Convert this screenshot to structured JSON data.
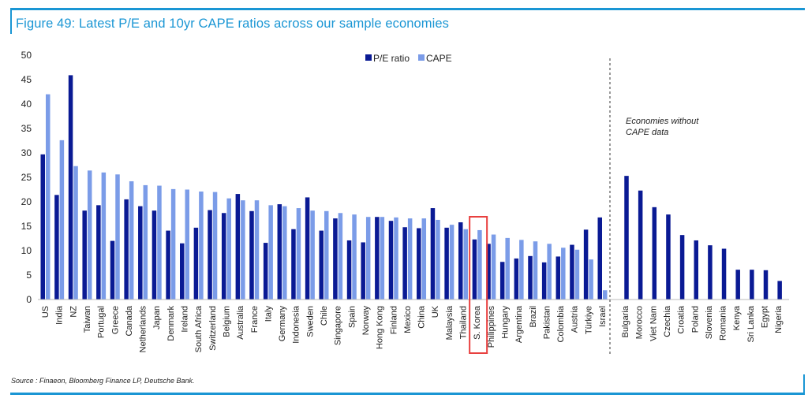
{
  "title": "Figure 49: Latest P/E and 10yr CAPE ratios across our sample economies",
  "source": "Source : Finaeon, Bloomberg Finance LP, Deutsche Bank.",
  "chart_data": {
    "type": "bar",
    "title": "Figure 49: Latest P/E and 10yr CAPE ratios across our sample economies",
    "xlabel": "",
    "ylabel": "",
    "ylim": [
      0,
      50
    ],
    "yticks": [
      0,
      5,
      10,
      15,
      20,
      25,
      30,
      35,
      40,
      45,
      50
    ],
    "grid": false,
    "legend_position": "top-center",
    "colors": {
      "pe": "#0a1a94",
      "cape": "#7b9ce8",
      "highlight": "#e8403f"
    },
    "highlighted_category": "S. Korea",
    "annotation": [
      "Economies without",
      "CAPE data"
    ],
    "categories": [
      "US",
      "India",
      "NZ",
      "Taiwan",
      "Portugal",
      "Greece",
      "Canada",
      "Netherlands",
      "Japan",
      "Denmark",
      "Ireland",
      "South Africa",
      "Switzerland",
      "Belgium",
      "Australia",
      "France",
      "Italy",
      "Germany",
      "Indonesia",
      "Sweden",
      "Chile",
      "Singapore",
      "Spain",
      "Norway",
      "Hong Kong",
      "Finland",
      "Mexico",
      "China",
      "UK",
      "Malaysia",
      "Thailand",
      "S. Korea",
      "Philippines",
      "Hungary",
      "Argentina",
      "Brazil",
      "Pakistan",
      "Colombia",
      "Austria",
      "Türkiye",
      "Israel"
    ],
    "series": [
      {
        "name": "P/E ratio",
        "values": [
          29.7,
          21.4,
          45.9,
          18.2,
          19.3,
          12.0,
          20.5,
          19.1,
          18.2,
          14.1,
          11.5,
          14.7,
          18.3,
          17.7,
          21.6,
          18.1,
          11.6,
          19.5,
          14.4,
          20.9,
          14.1,
          16.6,
          12.1,
          11.7,
          16.9,
          16.1,
          14.8,
          14.6,
          18.7,
          14.7,
          15.8,
          12.3,
          11.4,
          7.7,
          8.4,
          8.9,
          7.6,
          8.8,
          11.2,
          14.3,
          16.8
        ]
      },
      {
        "name": "CAPE",
        "values": [
          42.0,
          32.6,
          27.3,
          26.4,
          26.0,
          25.6,
          24.2,
          23.4,
          23.3,
          22.6,
          22.5,
          22.1,
          22.0,
          20.7,
          20.3,
          20.3,
          19.3,
          19.1,
          18.7,
          18.2,
          18.1,
          17.7,
          17.4,
          16.9,
          16.9,
          16.8,
          16.6,
          16.6,
          16.3,
          15.3,
          14.4,
          14.2,
          13.3,
          12.6,
          12.2,
          11.9,
          11.4,
          10.6,
          10.2,
          8.2,
          1.9
        ]
      }
    ],
    "no_cape_categories": [
      "Bulgaria",
      "Morocco",
      "Viet Nam",
      "Czechia",
      "Croatia",
      "Poland",
      "Slovenia",
      "Romania",
      "Kenya",
      "Sri Lanka",
      "Egypt",
      "Nigeria"
    ],
    "no_cape_pe_values": [
      25.3,
      22.3,
      18.9,
      17.4,
      13.2,
      12.1,
      11.1,
      10.4,
      6.1,
      6.1,
      6.0,
      3.8
    ]
  }
}
